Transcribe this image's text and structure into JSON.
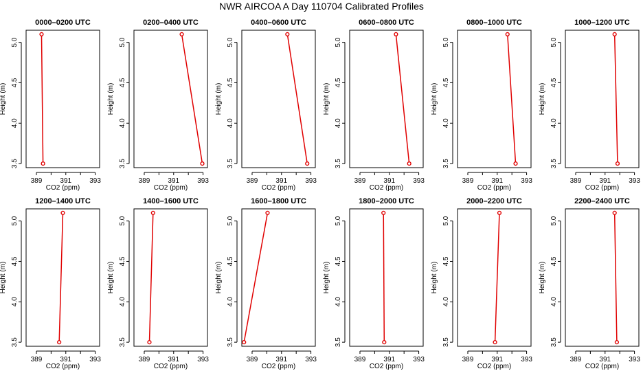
{
  "figure": {
    "title": "NWR AIRCOA A  Day 110704  Calibrated Profiles"
  },
  "chart_data": [
    {
      "type": "line",
      "title": "0000–0200 UTC",
      "xlabel": "CO2 (ppm)",
      "ylabel": "Height (m)",
      "xlim": [
        388.3,
        393.3
      ],
      "ylim": [
        3.45,
        5.15
      ],
      "xticks": [
        "389",
        "391",
        "393"
      ],
      "yticks": [
        "3.5",
        "4.0",
        "4.5",
        "5.0"
      ],
      "x": [
        389.35,
        389.45
      ],
      "y": [
        5.1,
        3.5
      ]
    },
    {
      "type": "line",
      "title": "0200–0400 UTC",
      "xlabel": "CO2 (ppm)",
      "ylabel": "Height (m)",
      "xlim": [
        388.3,
        393.3
      ],
      "ylim": [
        3.45,
        5.15
      ],
      "xticks": [
        "389",
        "391",
        "393"
      ],
      "yticks": [
        "3.5",
        "4.0",
        "4.5",
        "5.0"
      ],
      "x": [
        391.55,
        392.95
      ],
      "y": [
        5.1,
        3.5
      ]
    },
    {
      "type": "line",
      "title": "0400–0600 UTC",
      "xlabel": "CO2 (ppm)",
      "ylabel": "Height (m)",
      "xlim": [
        388.3,
        393.3
      ],
      "ylim": [
        3.45,
        5.15
      ],
      "xticks": [
        "389",
        "391",
        "393"
      ],
      "yticks": [
        "3.5",
        "4.0",
        "4.5",
        "5.0"
      ],
      "x": [
        391.4,
        392.75
      ],
      "y": [
        5.1,
        3.5
      ]
    },
    {
      "type": "line",
      "title": "0600–0800 UTC",
      "xlabel": "CO2 (ppm)",
      "ylabel": "Height (m)",
      "xlim": [
        388.3,
        393.3
      ],
      "ylim": [
        3.45,
        5.15
      ],
      "xticks": [
        "389",
        "391",
        "393"
      ],
      "yticks": [
        "3.5",
        "4.0",
        "4.5",
        "5.0"
      ],
      "x": [
        391.45,
        392.35
      ],
      "y": [
        5.1,
        3.5
      ]
    },
    {
      "type": "line",
      "title": "0800–1000 UTC",
      "xlabel": "CO2 (ppm)",
      "ylabel": "Height (m)",
      "xlim": [
        388.3,
        393.3
      ],
      "ylim": [
        3.45,
        5.15
      ],
      "xticks": [
        "389",
        "391",
        "393"
      ],
      "yticks": [
        "3.5",
        "4.0",
        "4.5",
        "5.0"
      ],
      "x": [
        391.7,
        392.25
      ],
      "y": [
        5.1,
        3.5
      ]
    },
    {
      "type": "line",
      "title": "1000–1200 UTC",
      "xlabel": "CO2 (ppm)",
      "ylabel": "Height (m)",
      "xlim": [
        388.3,
        393.3
      ],
      "ylim": [
        3.45,
        5.15
      ],
      "xticks": [
        "389",
        "391",
        "393"
      ],
      "yticks": [
        "3.5",
        "4.0",
        "4.5",
        "5.0"
      ],
      "x": [
        391.65,
        391.85
      ],
      "y": [
        5.1,
        3.5
      ]
    },
    {
      "type": "line",
      "title": "1200–1400 UTC",
      "xlabel": "CO2 (ppm)",
      "ylabel": "Height (m)",
      "xlim": [
        388.3,
        393.3
      ],
      "ylim": [
        3.45,
        5.15
      ],
      "xticks": [
        "389",
        "391",
        "393"
      ],
      "yticks": [
        "3.5",
        "4.0",
        "4.5",
        "5.0"
      ],
      "x": [
        390.8,
        390.55
      ],
      "y": [
        5.1,
        3.5
      ]
    },
    {
      "type": "line",
      "title": "1400–1600 UTC",
      "xlabel": "CO2 (ppm)",
      "ylabel": "Height (m)",
      "xlim": [
        388.3,
        393.3
      ],
      "ylim": [
        3.45,
        5.15
      ],
      "xticks": [
        "389",
        "391",
        "393"
      ],
      "yticks": [
        "3.5",
        "4.0",
        "4.5",
        "5.0"
      ],
      "x": [
        389.6,
        389.35
      ],
      "y": [
        5.1,
        3.5
      ]
    },
    {
      "type": "line",
      "title": "1600–1800 UTC",
      "xlabel": "CO2 (ppm)",
      "ylabel": "Height (m)",
      "xlim": [
        388.3,
        393.3
      ],
      "ylim": [
        3.45,
        5.15
      ],
      "xticks": [
        "389",
        "391",
        "393"
      ],
      "yticks": [
        "3.5",
        "4.0",
        "4.5",
        "5.0"
      ],
      "x": [
        390.05,
        388.45
      ],
      "y": [
        5.1,
        3.5
      ]
    },
    {
      "type": "line",
      "title": "1800–2000 UTC",
      "xlabel": "CO2 (ppm)",
      "ylabel": "Height (m)",
      "xlim": [
        388.3,
        393.3
      ],
      "ylim": [
        3.45,
        5.15
      ],
      "xticks": [
        "389",
        "391",
        "393"
      ],
      "yticks": [
        "3.5",
        "4.0",
        "4.5",
        "5.0"
      ],
      "x": [
        390.6,
        390.65
      ],
      "y": [
        5.1,
        3.5
      ]
    },
    {
      "type": "line",
      "title": "2000–2200 UTC",
      "xlabel": "CO2 (ppm)",
      "ylabel": "Height (m)",
      "xlim": [
        388.3,
        393.3
      ],
      "ylim": [
        3.45,
        5.15
      ],
      "xticks": [
        "389",
        "391",
        "393"
      ],
      "yticks": [
        "3.5",
        "4.0",
        "4.5",
        "5.0"
      ],
      "x": [
        391.15,
        390.85
      ],
      "y": [
        5.1,
        3.5
      ]
    },
    {
      "type": "line",
      "title": "2200–2400 UTC",
      "xlabel": "CO2 (ppm)",
      "ylabel": "Height (m)",
      "xlim": [
        388.3,
        393.3
      ],
      "ylim": [
        3.45,
        5.15
      ],
      "xticks": [
        "389",
        "391",
        "393"
      ],
      "yticks": [
        "3.5",
        "4.0",
        "4.5",
        "5.0"
      ],
      "x": [
        391.65,
        391.8
      ],
      "y": [
        5.1,
        3.5
      ]
    }
  ],
  "colors": {
    "series": "#e00000",
    "marker_fill": "#ffffff",
    "axes": "#000000"
  }
}
